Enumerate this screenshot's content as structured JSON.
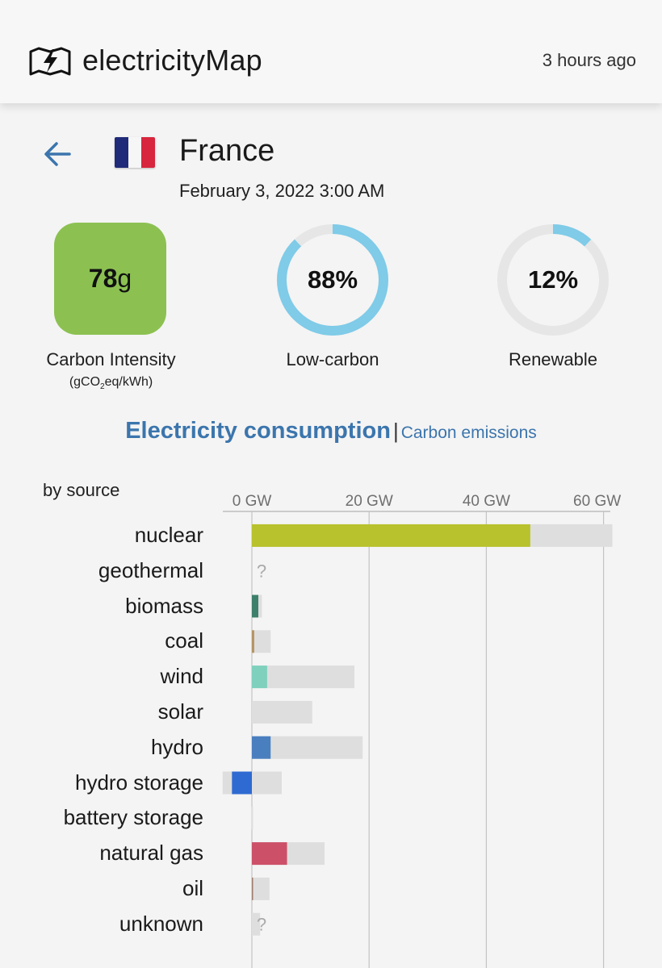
{
  "header": {
    "brand": "electricityMap",
    "updated": "3 hours ago"
  },
  "zone": {
    "country": "France",
    "datetime": "February 3, 2022 3:00 AM"
  },
  "stats": {
    "carbon_intensity": {
      "value": "78",
      "unit": "g",
      "label": "Carbon Intensity",
      "unit_label": "(gCO",
      "unit_sub": "2",
      "unit_rest": "eq/kWh)",
      "color": "#8cc152"
    },
    "low_carbon": {
      "value_text": "88%",
      "fraction": 0.88,
      "label": "Low-carbon"
    },
    "renewable": {
      "value_text": "12%",
      "fraction": 0.12,
      "label": "Renewable"
    },
    "ring_color": "#7fcbe8",
    "ring_track": "#e6e6e6"
  },
  "tabs": {
    "active": "Electricity consumption",
    "separator": "|",
    "inactive": "Carbon emissions"
  },
  "chart_data": {
    "type": "bar",
    "title": "by source",
    "orientation": "horizontal",
    "xlim": [
      -5,
      62
    ],
    "x_ticks": [
      0,
      20,
      40,
      60
    ],
    "x_tick_labels": [
      "0 GW",
      "20 GW",
      "40 GW",
      "60 GW"
    ],
    "unknown_marker": "?",
    "grid": true,
    "categories": [
      "nuclear",
      "geothermal",
      "biomass",
      "coal",
      "wind",
      "solar",
      "hydro",
      "hydro storage",
      "battery storage",
      "natural gas",
      "oil",
      "unknown"
    ],
    "series": [
      {
        "values": [
          47.5,
          0,
          1.1,
          0.4,
          2.6,
          0,
          3.2,
          -3.4,
          0,
          6.0,
          0.2,
          0
        ]
      },
      {
        "values": [
          61.5,
          0,
          1.7,
          3.2,
          17.5,
          10.3,
          18.9,
          5.1,
          0.2,
          12.4,
          3.0,
          1.4
        ]
      }
    ],
    "unknown_values": [
      false,
      true,
      false,
      false,
      false,
      false,
      false,
      false,
      false,
      false,
      false,
      true
    ],
    "min_capacity": [
      0,
      0,
      0,
      0,
      0,
      0,
      0,
      -5.0,
      -0.1,
      0,
      0,
      0
    ],
    "colors": [
      "#b8c22c",
      "#c9c9c9",
      "#3c7f6a",
      "#b39463",
      "#7fd1bd",
      "#e0e0e0",
      "#4a7fbf",
      "#2e6ad1",
      "#cccccc",
      "#cc5168",
      "#9e7a6a",
      "#dcdcdc"
    ]
  }
}
